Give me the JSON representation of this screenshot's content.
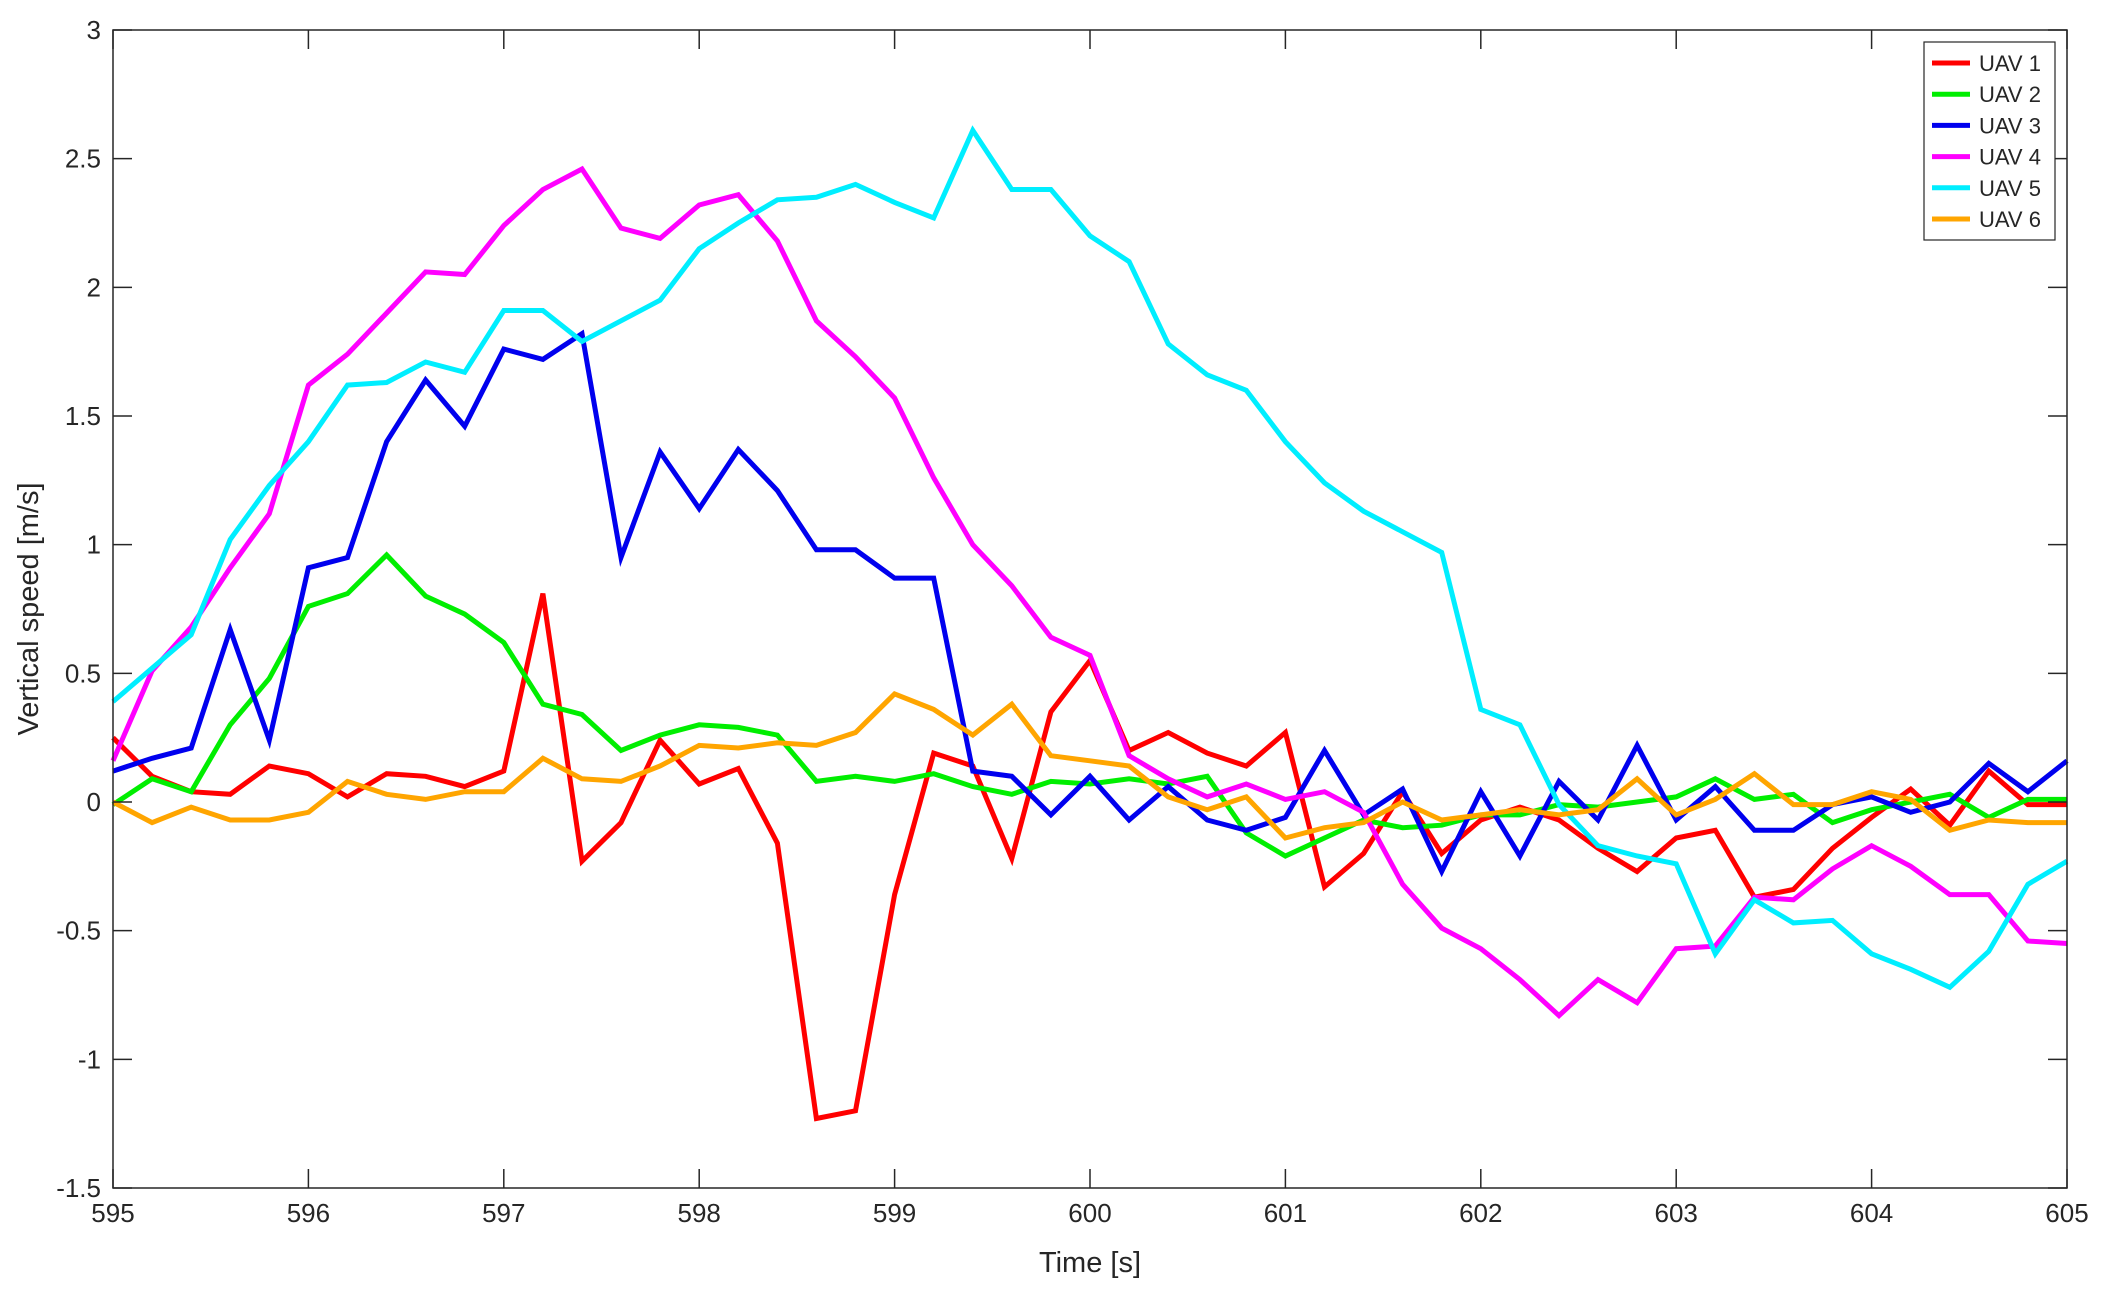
{
  "chart_data": {
    "type": "line",
    "title": "",
    "xlabel": "Time [s]",
    "ylabel": "Vertical speed [m/s]",
    "xlim": [
      595,
      605
    ],
    "ylim": [
      -1.5,
      3
    ],
    "xticks": [
      595,
      596,
      597,
      598,
      599,
      600,
      601,
      602,
      603,
      604,
      605
    ],
    "yticks": [
      -1.5,
      -1,
      -0.5,
      0,
      0.5,
      1,
      1.5,
      2,
      2.5,
      3
    ],
    "grid": false,
    "legend_position": "top-right",
    "x": [
      595.0,
      595.2,
      595.4,
      595.6,
      595.8,
      596.0,
      596.2,
      596.4,
      596.6,
      596.8,
      597.0,
      597.2,
      597.4,
      597.6,
      597.8,
      598.0,
      598.2,
      598.4,
      598.6,
      598.8,
      599.0,
      599.2,
      599.4,
      599.6,
      599.8,
      600.0,
      600.2,
      600.4,
      600.6,
      600.8,
      601.0,
      601.2,
      601.4,
      601.6,
      601.8,
      602.0,
      602.2,
      602.4,
      602.6,
      602.8,
      603.0,
      603.2,
      603.4,
      603.6,
      603.8,
      604.0,
      604.2,
      604.4,
      604.6,
      604.8,
      605.0
    ],
    "series": [
      {
        "name": "UAV 1",
        "color": "#ff0000",
        "values": [
          0.25,
          0.1,
          0.04,
          0.03,
          0.14,
          0.11,
          0.02,
          0.11,
          0.1,
          0.06,
          0.12,
          0.81,
          -0.23,
          -0.08,
          0.24,
          0.07,
          0.13,
          -0.16,
          -1.23,
          -1.2,
          -0.36,
          0.19,
          0.14,
          -0.22,
          0.35,
          0.55,
          0.2,
          0.27,
          0.19,
          0.14,
          0.27,
          -0.33,
          -0.2,
          0.04,
          -0.2,
          -0.07,
          -0.02,
          -0.07,
          -0.18,
          -0.27,
          -0.14,
          -0.11,
          -0.37,
          -0.34,
          -0.18,
          -0.06,
          0.05,
          -0.09,
          0.12,
          -0.01,
          -0.01
        ]
      },
      {
        "name": "UAV 2",
        "color": "#00ee00",
        "values": [
          -0.01,
          0.09,
          0.04,
          0.3,
          0.48,
          0.76,
          0.81,
          0.96,
          0.8,
          0.73,
          0.62,
          0.38,
          0.34,
          0.2,
          0.26,
          0.3,
          0.29,
          0.26,
          0.08,
          0.1,
          0.08,
          0.11,
          0.06,
          0.03,
          0.08,
          0.07,
          0.09,
          0.07,
          0.1,
          -0.12,
          -0.21,
          -0.14,
          -0.07,
          -0.1,
          -0.09,
          -0.05,
          -0.05,
          -0.01,
          -0.02,
          0.0,
          0.02,
          0.09,
          0.01,
          0.03,
          -0.08,
          -0.03,
          0.0,
          0.03,
          -0.06,
          0.01,
          0.01
        ]
      },
      {
        "name": "UAV 3",
        "color": "#0000ee",
        "values": [
          0.12,
          0.17,
          0.21,
          0.67,
          0.24,
          0.91,
          0.95,
          1.4,
          1.64,
          1.46,
          1.76,
          1.72,
          1.82,
          0.95,
          1.36,
          1.14,
          1.37,
          1.21,
          0.98,
          0.98,
          0.87,
          0.87,
          0.12,
          0.1,
          -0.05,
          0.1,
          -0.07,
          0.06,
          -0.07,
          -0.11,
          -0.06,
          0.2,
          -0.05,
          0.05,
          -0.27,
          0.04,
          -0.21,
          0.08,
          -0.07,
          0.22,
          -0.07,
          0.06,
          -0.11,
          -0.11,
          -0.01,
          0.02,
          -0.04,
          0.0,
          0.15,
          0.04,
          0.16
        ]
      },
      {
        "name": "UAV 4",
        "color": "#ff00ff",
        "values": [
          0.16,
          0.51,
          0.68,
          0.91,
          1.12,
          1.62,
          1.74,
          1.9,
          2.06,
          2.05,
          2.24,
          2.38,
          2.46,
          2.23,
          2.19,
          2.32,
          2.36,
          2.18,
          1.87,
          1.73,
          1.57,
          1.26,
          1.0,
          0.84,
          0.64,
          0.57,
          0.18,
          0.09,
          0.02,
          0.07,
          0.01,
          0.04,
          -0.04,
          -0.32,
          -0.49,
          -0.57,
          -0.69,
          -0.83,
          -0.69,
          -0.78,
          -0.57,
          -0.56,
          -0.37,
          -0.38,
          -0.26,
          -0.17,
          -0.25,
          -0.36,
          -0.36,
          -0.54,
          -0.55
        ]
      },
      {
        "name": "UAV 5",
        "color": "#00eeff",
        "values": [
          0.39,
          0.52,
          0.65,
          1.02,
          1.23,
          1.4,
          1.62,
          1.63,
          1.71,
          1.67,
          1.91,
          1.91,
          1.79,
          1.87,
          1.95,
          2.15,
          2.25,
          2.34,
          2.35,
          2.4,
          2.33,
          2.27,
          2.61,
          2.38,
          2.38,
          2.2,
          2.1,
          1.78,
          1.66,
          1.6,
          1.4,
          1.24,
          1.13,
          1.05,
          0.97,
          0.36,
          0.3,
          -0.01,
          -0.17,
          -0.21,
          -0.24,
          -0.59,
          -0.38,
          -0.47,
          -0.46,
          -0.59,
          -0.65,
          -0.72,
          -0.58,
          -0.32,
          -0.23
        ]
      },
      {
        "name": "UAV 6",
        "color": "#ffa500",
        "values": [
          0.0,
          -0.08,
          -0.02,
          -0.07,
          -0.07,
          -0.04,
          0.08,
          0.03,
          0.01,
          0.04,
          0.04,
          0.17,
          0.09,
          0.08,
          0.14,
          0.22,
          0.21,
          0.23,
          0.22,
          0.27,
          0.42,
          0.36,
          0.26,
          0.38,
          0.18,
          0.16,
          0.14,
          0.02,
          -0.03,
          0.02,
          -0.14,
          -0.1,
          -0.08,
          0.0,
          -0.07,
          -0.05,
          -0.03,
          -0.05,
          -0.03,
          0.09,
          -0.05,
          0.01,
          0.11,
          -0.01,
          -0.01,
          0.04,
          0.01,
          -0.11,
          -0.07,
          -0.08,
          -0.08
        ]
      }
    ]
  }
}
